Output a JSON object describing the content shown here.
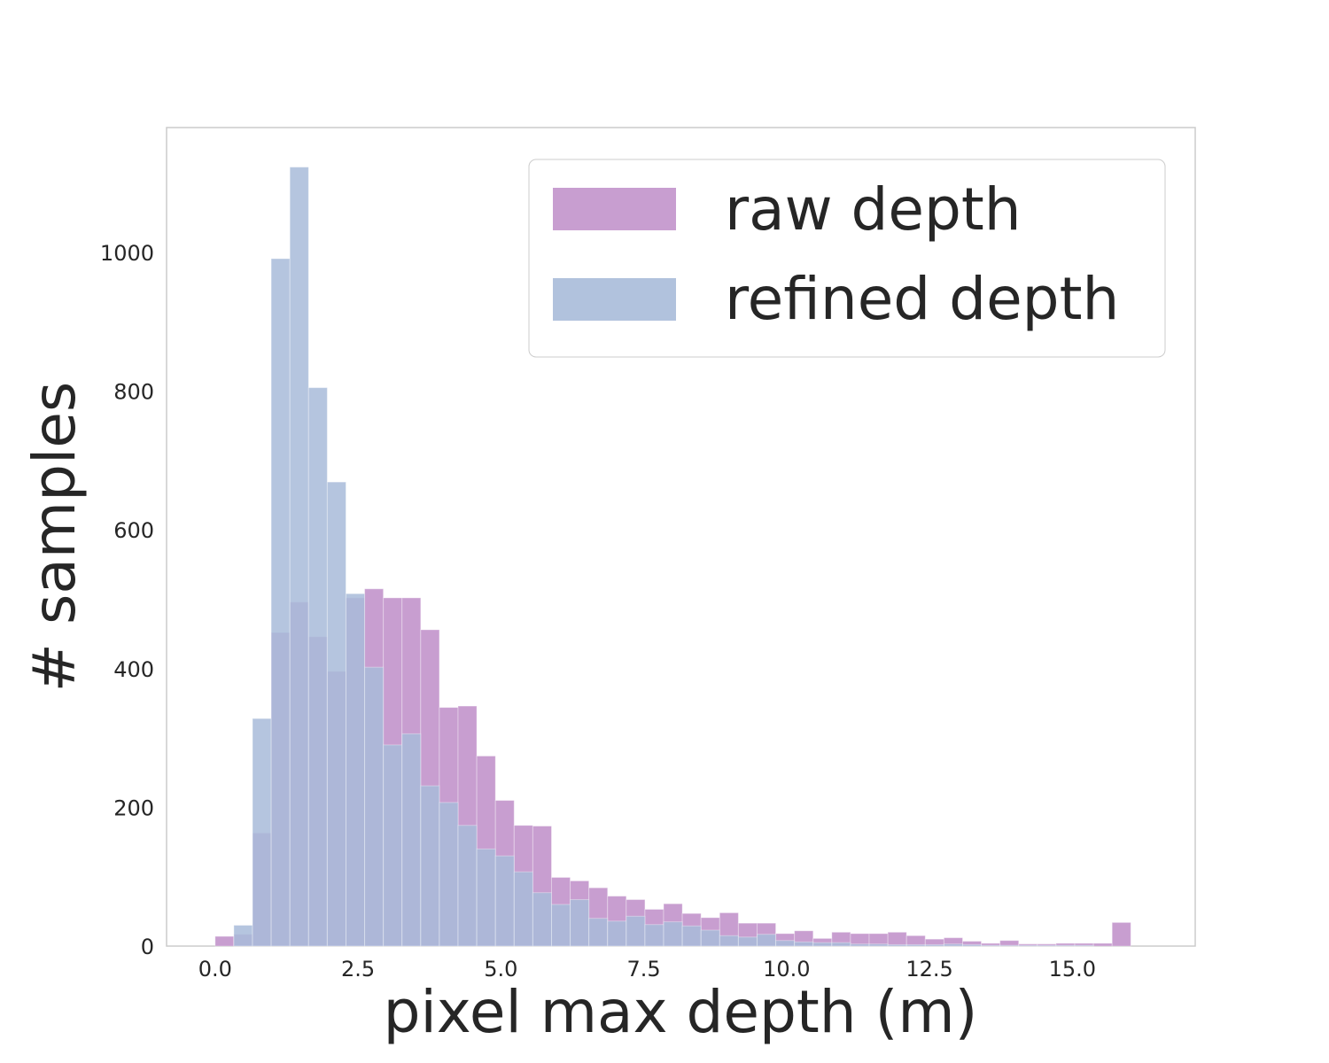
{
  "chart_data": {
    "type": "bar",
    "title": "",
    "xlabel": "pixel max depth (m)",
    "ylabel": "# samples",
    "xlim": [
      -0.85,
      17.15
    ],
    "ylim": [
      0,
      1180
    ],
    "grid": false,
    "legend_position": "top-right",
    "x_ticks": [
      {
        "value": 0.0,
        "label": "0.0"
      },
      {
        "value": 2.5,
        "label": "2.5"
      },
      {
        "value": 5.0,
        "label": "5.0"
      },
      {
        "value": 7.5,
        "label": "7.5"
      },
      {
        "value": 10.0,
        "label": "10.0"
      },
      {
        "value": 12.5,
        "label": "12.5"
      },
      {
        "value": 15.0,
        "label": "15.0"
      }
    ],
    "y_ticks": [
      {
        "value": 0,
        "label": "0"
      },
      {
        "value": 200,
        "label": "200"
      },
      {
        "value": 400,
        "label": "400"
      },
      {
        "value": 600,
        "label": "600"
      },
      {
        "value": 800,
        "label": "800"
      },
      {
        "value": 1000,
        "label": "1000"
      }
    ],
    "series": [
      {
        "name": "raw depth",
        "color": "#c294cb",
        "bin_start": 0.0,
        "bin_width": 0.327,
        "values": [
          14,
          17,
          163,
          452,
          496,
          446,
          396,
          502,
          515,
          502,
          502,
          456,
          344,
          346,
          274,
          210,
          174,
          173,
          99,
          94,
          84,
          72,
          67,
          53,
          61,
          47,
          41,
          48,
          33,
          33,
          18,
          22,
          11,
          20,
          18,
          18,
          20,
          15,
          10,
          12,
          7,
          4,
          8,
          3,
          3,
          4,
          4,
          4,
          34
        ]
      },
      {
        "name": "refined depth",
        "color": "#a8bbd9",
        "bin_start": 0.327,
        "bin_width": 0.327,
        "values": [
          30,
          328,
          991,
          1123,
          805,
          669,
          508,
          402,
          290,
          306,
          231,
          207,
          174,
          140,
          130,
          107,
          77,
          60,
          67,
          40,
          36,
          43,
          31,
          35,
          29,
          23,
          15,
          13,
          17,
          8,
          6,
          5,
          5,
          3,
          3,
          2,
          2,
          2,
          3,
          2,
          1,
          1,
          1,
          1,
          1,
          1
        ]
      }
    ]
  }
}
